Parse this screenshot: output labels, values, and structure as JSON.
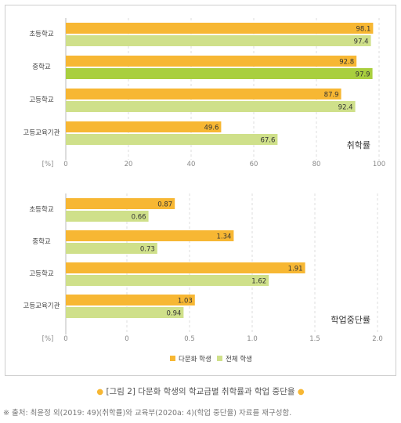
{
  "chart_data": [
    {
      "type": "bar",
      "orientation": "horizontal",
      "label": "취학률",
      "unit": "[%]",
      "categories": [
        "초등학교",
        "중학교",
        "고등학교",
        "고등교육기관"
      ],
      "series": [
        {
          "name": "다문화 학생",
          "values": [
            98.1,
            92.8,
            87.9,
            49.6
          ]
        },
        {
          "name": "전체 학생",
          "values": [
            97.4,
            97.9,
            92.4,
            67.6
          ]
        }
      ],
      "xlim": [
        0,
        100
      ],
      "ticks": [
        "0",
        "20",
        "40",
        "60",
        "80",
        "100"
      ],
      "tick_values": [
        0,
        20,
        40,
        60,
        80,
        100
      ],
      "highlight": {
        "category_index": 1,
        "series_index": 1
      }
    },
    {
      "type": "bar",
      "orientation": "horizontal",
      "label": "학업중단률",
      "unit": "[%]",
      "categories": [
        "초등학교",
        "중학교",
        "고등학교",
        "고등교육기관"
      ],
      "series": [
        {
          "name": "다문화 학생",
          "values": [
            0.87,
            1.34,
            1.91,
            1.03
          ]
        },
        {
          "name": "전체 학생",
          "values": [
            0.66,
            0.73,
            1.62,
            0.94
          ]
        }
      ],
      "xlim": [
        0,
        2.0
      ],
      "ticks": [
        "0",
        "0",
        "0.5",
        "1.0",
        "1.5",
        "2.0"
      ],
      "tick_values": [
        0,
        0,
        0.5,
        1.0,
        1.5,
        2.0
      ]
    }
  ],
  "legend": {
    "items": [
      {
        "label": "다문화 학생",
        "color": "#f7b733"
      },
      {
        "label": "전체 학생",
        "color": "#cfe08a"
      }
    ]
  },
  "colors": {
    "multicultural": "#f7b733",
    "all": "#cfe08a",
    "highlight": "#a9cf3e",
    "grid": "#dddddd"
  },
  "caption": {
    "bullet": "●",
    "text": "[그림 2] 다문화 학생의 학교급별 취학률과 학업 중단율"
  },
  "source": "※ 출처: 최윤정 외(2019: 49)(취학률)와 교육부(2020a: 4)(학업 중단율) 자료를 재구성함."
}
